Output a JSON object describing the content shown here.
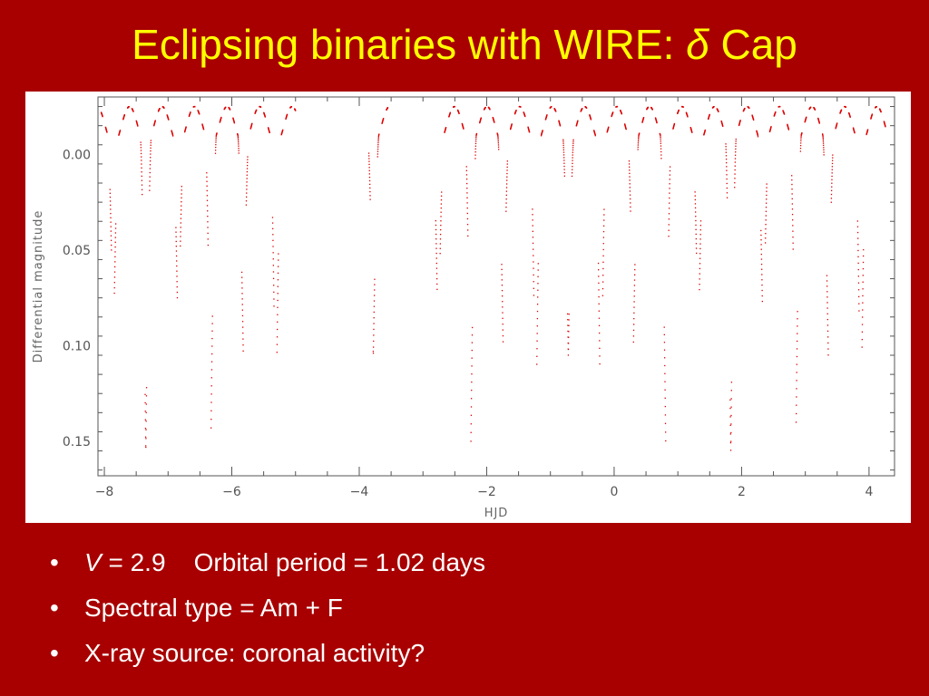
{
  "slide": {
    "title_prefix": "Eclipsing binaries with WIRE:",
    "title_symbol": "δ",
    "title_suffix": "Cap"
  },
  "bullets": [
    {
      "var": "V",
      "text": " = 2.9    Orbital period = 1.02 days"
    },
    {
      "text": "Spectral type = Am + F"
    },
    {
      "text": "X-ray source: coronal activity?"
    }
  ],
  "bullet_glyph": "•",
  "colors": {
    "background": "#a80000",
    "title": "#ffff00",
    "points": "#dd0000"
  },
  "chart_data": {
    "type": "scatter",
    "xlabel": "HJD",
    "ylabel": "Differential magnitude",
    "xlim": [
      -8.1,
      4.4
    ],
    "ylim": [
      -0.03,
      0.168
    ],
    "y_inverted": true,
    "xticks": [
      -8,
      -6,
      -4,
      -2,
      0,
      2,
      4
    ],
    "xtick_labels": [
      "−8",
      "−6",
      "−4",
      "−2",
      "0",
      "2",
      "4"
    ],
    "yticks": [
      0.0,
      0.05,
      0.1,
      0.15
    ],
    "ytick_labels": [
      "0.00",
      "0.05",
      "0.10",
      "0.15"
    ],
    "grid": false,
    "period_days": 1.02,
    "primary_eclipse_depth": 0.16,
    "secondary_eclipse_depth": 0.11,
    "observing_gap_hjd": [
      -3.55,
      -2.8
    ],
    "segments": [
      [
        -8.05,
        -5.0
      ],
      [
        -3.85,
        -3.55
      ],
      [
        -2.8,
        4.3
      ]
    ],
    "primary_minima_hjd": [
      -7.35,
      -6.33,
      -5.31,
      -4.29,
      -3.27,
      -2.25,
      -1.23,
      -0.21,
      0.81,
      1.83,
      2.85,
      3.87
    ],
    "secondary_minima_hjd": [
      -6.84,
      -5.82,
      -4.8,
      -3.78,
      -2.76,
      -1.74,
      -0.72,
      0.3,
      1.32,
      2.34,
      3.36
    ]
  }
}
